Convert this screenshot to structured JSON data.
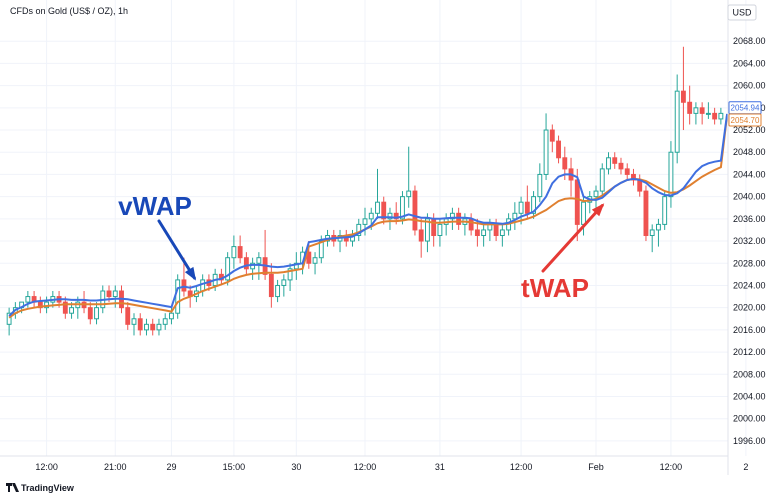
{
  "header": {
    "title": "CFDs on Gold (US$ / OZ), 1h"
  },
  "currency_button": {
    "label": "USD"
  },
  "branding": {
    "name": "TradingView"
  },
  "colors": {
    "up": "#26a69a",
    "down": "#ef5350",
    "vwap": "#3f6fe0",
    "twap": "#e08030",
    "anno_vwap": "#1848b8",
    "anno_twap": "#e53935"
  },
  "chart_data": {
    "type": "candlestick",
    "title": "CFDs on Gold (US$ / OZ), 1h",
    "ylim": [
      1994,
      2072
    ],
    "y_ticks": [
      "2068.00",
      "2064.00",
      "2060.00",
      "2056.00",
      "2052.00",
      "2048.00",
      "2044.00",
      "2040.00",
      "2036.00",
      "2032.00",
      "2028.00",
      "2024.00",
      "2020.00",
      "2016.00",
      "2012.00",
      "2008.00",
      "2004.00",
      "2000.00",
      "1996.00"
    ],
    "x_tick_labels": [
      "12:00",
      "21:00",
      "29",
      "15:00",
      "30",
      "12:00",
      "31",
      "12:00",
      "Feb",
      "12:00",
      "2"
    ],
    "x_tick_index": [
      6,
      17,
      26,
      36,
      46,
      57,
      69,
      82,
      94,
      106,
      118
    ],
    "price_labels": [
      {
        "series": "vWAP",
        "value": "2054.94"
      },
      {
        "series": "tWAP",
        "value": "2054.70"
      }
    ],
    "annotations": [
      {
        "text": "vWAP",
        "series": "vWAP",
        "target_index": 30
      },
      {
        "text": "tWAP",
        "series": "tWAP",
        "target_index": 95
      }
    ],
    "candles": [
      [
        2017,
        2020,
        2015,
        2019
      ],
      [
        2019,
        2021,
        2018,
        2020
      ],
      [
        2020,
        2021,
        2019,
        2021
      ],
      [
        2021,
        2023,
        2020,
        2022
      ],
      [
        2022,
        2023,
        2020,
        2021
      ],
      [
        2021,
        2022,
        2019,
        2020
      ],
      [
        2020,
        2022,
        2019,
        2021
      ],
      [
        2021,
        2023,
        2020,
        2022
      ],
      [
        2022,
        2023,
        2020,
        2021
      ],
      [
        2021,
        2022,
        2018,
        2019
      ],
      [
        2019,
        2021,
        2018,
        2020
      ],
      [
        2020,
        2022,
        2018,
        2021
      ],
      [
        2021,
        2023,
        2019,
        2020
      ],
      [
        2020,
        2021,
        2017,
        2018
      ],
      [
        2018,
        2021,
        2017,
        2020
      ],
      [
        2020,
        2024,
        2019,
        2023
      ],
      [
        2023,
        2024,
        2021,
        2022
      ],
      [
        2022,
        2024,
        2020,
        2023
      ],
      [
        2023,
        2024,
        2019,
        2020
      ],
      [
        2020,
        2021,
        2016,
        2017
      ],
      [
        2017,
        2019,
        2015,
        2018
      ],
      [
        2018,
        2019,
        2015,
        2016
      ],
      [
        2016,
        2018,
        2015,
        2017
      ],
      [
        2017,
        2018,
        2015,
        2016
      ],
      [
        2016,
        2018,
        2015,
        2017
      ],
      [
        2017,
        2019,
        2016,
        2018
      ],
      [
        2018,
        2020,
        2017,
        2019
      ],
      [
        2019,
        2026,
        2018,
        2025
      ],
      [
        2025,
        2029,
        2022,
        2023
      ],
      [
        2023,
        2024,
        2020,
        2022
      ],
      [
        2022,
        2024,
        2021,
        2023
      ],
      [
        2023,
        2026,
        2022,
        2025
      ],
      [
        2025,
        2026,
        2023,
        2024
      ],
      [
        2024,
        2027,
        2023,
        2026
      ],
      [
        2026,
        2027,
        2024,
        2025
      ],
      [
        2025,
        2030,
        2024,
        2029
      ],
      [
        2029,
        2033,
        2027,
        2031
      ],
      [
        2031,
        2033,
        2028,
        2029
      ],
      [
        2029,
        2030,
        2026,
        2027
      ],
      [
        2027,
        2029,
        2025,
        2028
      ],
      [
        2028,
        2030,
        2025,
        2029
      ],
      [
        2029,
        2034,
        2025,
        2026
      ],
      [
        2026,
        2028,
        2020,
        2022
      ],
      [
        2022,
        2025,
        2021,
        2024
      ],
      [
        2024,
        2026,
        2022,
        2025
      ],
      [
        2025,
        2028,
        2023,
        2027
      ],
      [
        2027,
        2030,
        2025,
        2028
      ],
      [
        2028,
        2031,
        2026,
        2030
      ],
      [
        2030,
        2032,
        2027,
        2028
      ],
      [
        2028,
        2030,
        2026,
        2029
      ],
      [
        2029,
        2033,
        2028,
        2032
      ],
      [
        2032,
        2034,
        2031,
        2033
      ],
      [
        2033,
        2034,
        2031,
        2032
      ],
      [
        2032,
        2034,
        2030,
        2033
      ],
      [
        2033,
        2034,
        2031,
        2032
      ],
      [
        2032,
        2034,
        2031,
        2033
      ],
      [
        2033,
        2036,
        2032,
        2035
      ],
      [
        2035,
        2038,
        2033,
        2036
      ],
      [
        2036,
        2038,
        2034,
        2037
      ],
      [
        2037,
        2045,
        2036,
        2039
      ],
      [
        2039,
        2040,
        2035,
        2036
      ],
      [
        2036,
        2038,
        2034,
        2037
      ],
      [
        2037,
        2039,
        2035,
        2036
      ],
      [
        2036,
        2041,
        2035,
        2040
      ],
      [
        2040,
        2049,
        2038,
        2041
      ],
      [
        2041,
        2042,
        2033,
        2034
      ],
      [
        2034,
        2036,
        2029,
        2032
      ],
      [
        2032,
        2037,
        2030,
        2036
      ],
      [
        2036,
        2037,
        2031,
        2033
      ],
      [
        2033,
        2036,
        2031,
        2035
      ],
      [
        2035,
        2037,
        2033,
        2036
      ],
      [
        2036,
        2038,
        2034,
        2037
      ],
      [
        2037,
        2038,
        2034,
        2035
      ],
      [
        2035,
        2037,
        2033,
        2036
      ],
      [
        2036,
        2037,
        2033,
        2034
      ],
      [
        2034,
        2036,
        2031,
        2033
      ],
      [
        2033,
        2035,
        2031,
        2034
      ],
      [
        2034,
        2036,
        2032,
        2035
      ],
      [
        2035,
        2036,
        2032,
        2033
      ],
      [
        2033,
        2035,
        2031,
        2034
      ],
      [
        2034,
        2037,
        2033,
        2036
      ],
      [
        2036,
        2039,
        2034,
        2037
      ],
      [
        2037,
        2040,
        2035,
        2039
      ],
      [
        2039,
        2042,
        2036,
        2037
      ],
      [
        2037,
        2041,
        2036,
        2040
      ],
      [
        2040,
        2046,
        2039,
        2044
      ],
      [
        2044,
        2055,
        2043,
        2052
      ],
      [
        2052,
        2053,
        2048,
        2050
      ],
      [
        2050,
        2051,
        2046,
        2047
      ],
      [
        2047,
        2049,
        2043,
        2045
      ],
      [
        2045,
        2047,
        2040,
        2043
      ],
      [
        2043,
        2045,
        2032,
        2035
      ],
      [
        2035,
        2040,
        2033,
        2039
      ],
      [
        2039,
        2041,
        2037,
        2040
      ],
      [
        2040,
        2042,
        2038,
        2041
      ],
      [
        2041,
        2046,
        2040,
        2045
      ],
      [
        2045,
        2048,
        2044,
        2047
      ],
      [
        2047,
        2048,
        2045,
        2046
      ],
      [
        2046,
        2047,
        2044,
        2045
      ],
      [
        2045,
        2046,
        2043,
        2044
      ],
      [
        2044,
        2045,
        2042,
        2043
      ],
      [
        2043,
        2044,
        2040,
        2041
      ],
      [
        2041,
        2042,
        2032,
        2033
      ],
      [
        2033,
        2035,
        2030,
        2034
      ],
      [
        2034,
        2036,
        2031,
        2035
      ],
      [
        2035,
        2041,
        2034,
        2040
      ],
      [
        2040,
        2050,
        2038,
        2048
      ],
      [
        2048,
        2062,
        2046,
        2059
      ],
      [
        2059,
        2067,
        2052,
        2057
      ],
      [
        2057,
        2060,
        2053,
        2055
      ],
      [
        2055,
        2057,
        2053,
        2056
      ],
      [
        2056,
        2057,
        2053,
        2055
      ],
      [
        2055,
        2057,
        2054,
        2055
      ],
      [
        2055,
        2056,
        2053,
        2054
      ],
      [
        2054,
        2056,
        2053,
        2055
      ]
    ],
    "vwap": [
      2018.5,
      2019.6,
      2020.1,
      2020.7,
      2021.1,
      2021.2,
      2021.3,
      2021.4,
      2021.5,
      2021.5,
      2021.4,
      2021.4,
      2021.4,
      2021.3,
      2021.3,
      2021.4,
      2021.5,
      2021.6,
      2021.6,
      2021.5,
      2021.3,
      2021.1,
      2020.9,
      2020.7,
      2020.5,
      2020.3,
      2020.1,
      2023.5,
      2023.8,
      2023.6,
      2023.9,
      2024.3,
      2024.6,
      2025.0,
      2025.2,
      2025.8,
      2026.6,
      2027.2,
      2027.6,
      2027.7,
      2027.7,
      2027.6,
      2027.4,
      2027.3,
      2027.4,
      2027.6,
      2027.8,
      2028.0,
      2031.8,
      2032.0,
      2032.2,
      2032.4,
      2032.5,
      2032.6,
      2032.7,
      2032.8,
      2033.4,
      2034.1,
      2034.8,
      2036.3,
      2036.3,
      2036.3,
      2036.2,
      2036.4,
      2036.8,
      2036.5,
      2036.2,
      2036.2,
      2036.0,
      2036.0,
      2036.1,
      2036.2,
      2036.2,
      2036.2,
      2036.1,
      2035.6,
      2035.3,
      2035.3,
      2035.2,
      2035.1,
      2035.3,
      2035.8,
      2036.4,
      2036.8,
      2037.3,
      2038.5,
      2040.0,
      2042.4,
      2043.6,
      2044.0,
      2044.0,
      2043.5,
      2040.0,
      2039.5,
      2039.4,
      2039.8,
      2040.8,
      2041.8,
      2042.5,
      2043.0,
      2043.2,
      2043.0,
      2042.5,
      2041.5,
      2040.8,
      2040.3,
      2040.2,
      2040.6,
      2041.5,
      2043.0,
      2044.5,
      2045.5,
      2046.0,
      2046.3,
      2046.5,
      2054.9
    ],
    "twap": [
      2018.2,
      2019.0,
      2019.5,
      2019.8,
      2020.0,
      2020.2,
      2020.3,
      2020.4,
      2020.5,
      2020.6,
      2020.6,
      2020.6,
      2020.6,
      2020.6,
      2020.6,
      2020.6,
      2020.7,
      2020.8,
      2020.8,
      2020.7,
      2020.5,
      2020.3,
      2020.1,
      2019.9,
      2019.7,
      2019.5,
      2019.3,
      2021.0,
      2021.6,
      2022.0,
      2022.5,
      2023.0,
      2023.4,
      2023.8,
      2024.2,
      2024.6,
      2025.2,
      2025.6,
      2025.9,
      2026.1,
      2026.2,
      2026.3,
      2026.3,
      2026.3,
      2026.4,
      2026.6,
      2026.8,
      2027.0,
      2031.0,
      2031.4,
      2031.8,
      2032.2,
      2032.5,
      2032.8,
      2033.0,
      2033.2,
      2033.6,
      2034.1,
      2034.6,
      2035.2,
      2035.5,
      2035.6,
      2035.6,
      2035.7,
      2035.9,
      2035.8,
      2035.6,
      2035.5,
      2035.3,
      2035.3,
      2035.4,
      2035.5,
      2035.5,
      2035.5,
      2035.4,
      2035.2,
      2035.0,
      2035.0,
      2035.0,
      2035.0,
      2035.1,
      2035.4,
      2035.7,
      2036.0,
      2036.4,
      2037.0,
      2037.6,
      2038.4,
      2039.2,
      2039.6,
      2039.7,
      2039.6,
      2039.2,
      2039.3,
      2039.6,
      2040.2,
      2041.0,
      2041.8,
      2042.5,
      2043.0,
      2043.2,
      2043.1,
      2042.8,
      2042.2,
      2041.6,
      2041.0,
      2040.7,
      2040.8,
      2041.3,
      2042.0,
      2042.8,
      2043.6,
      2044.2,
      2044.8,
      2045.3,
      2054.7
    ]
  }
}
